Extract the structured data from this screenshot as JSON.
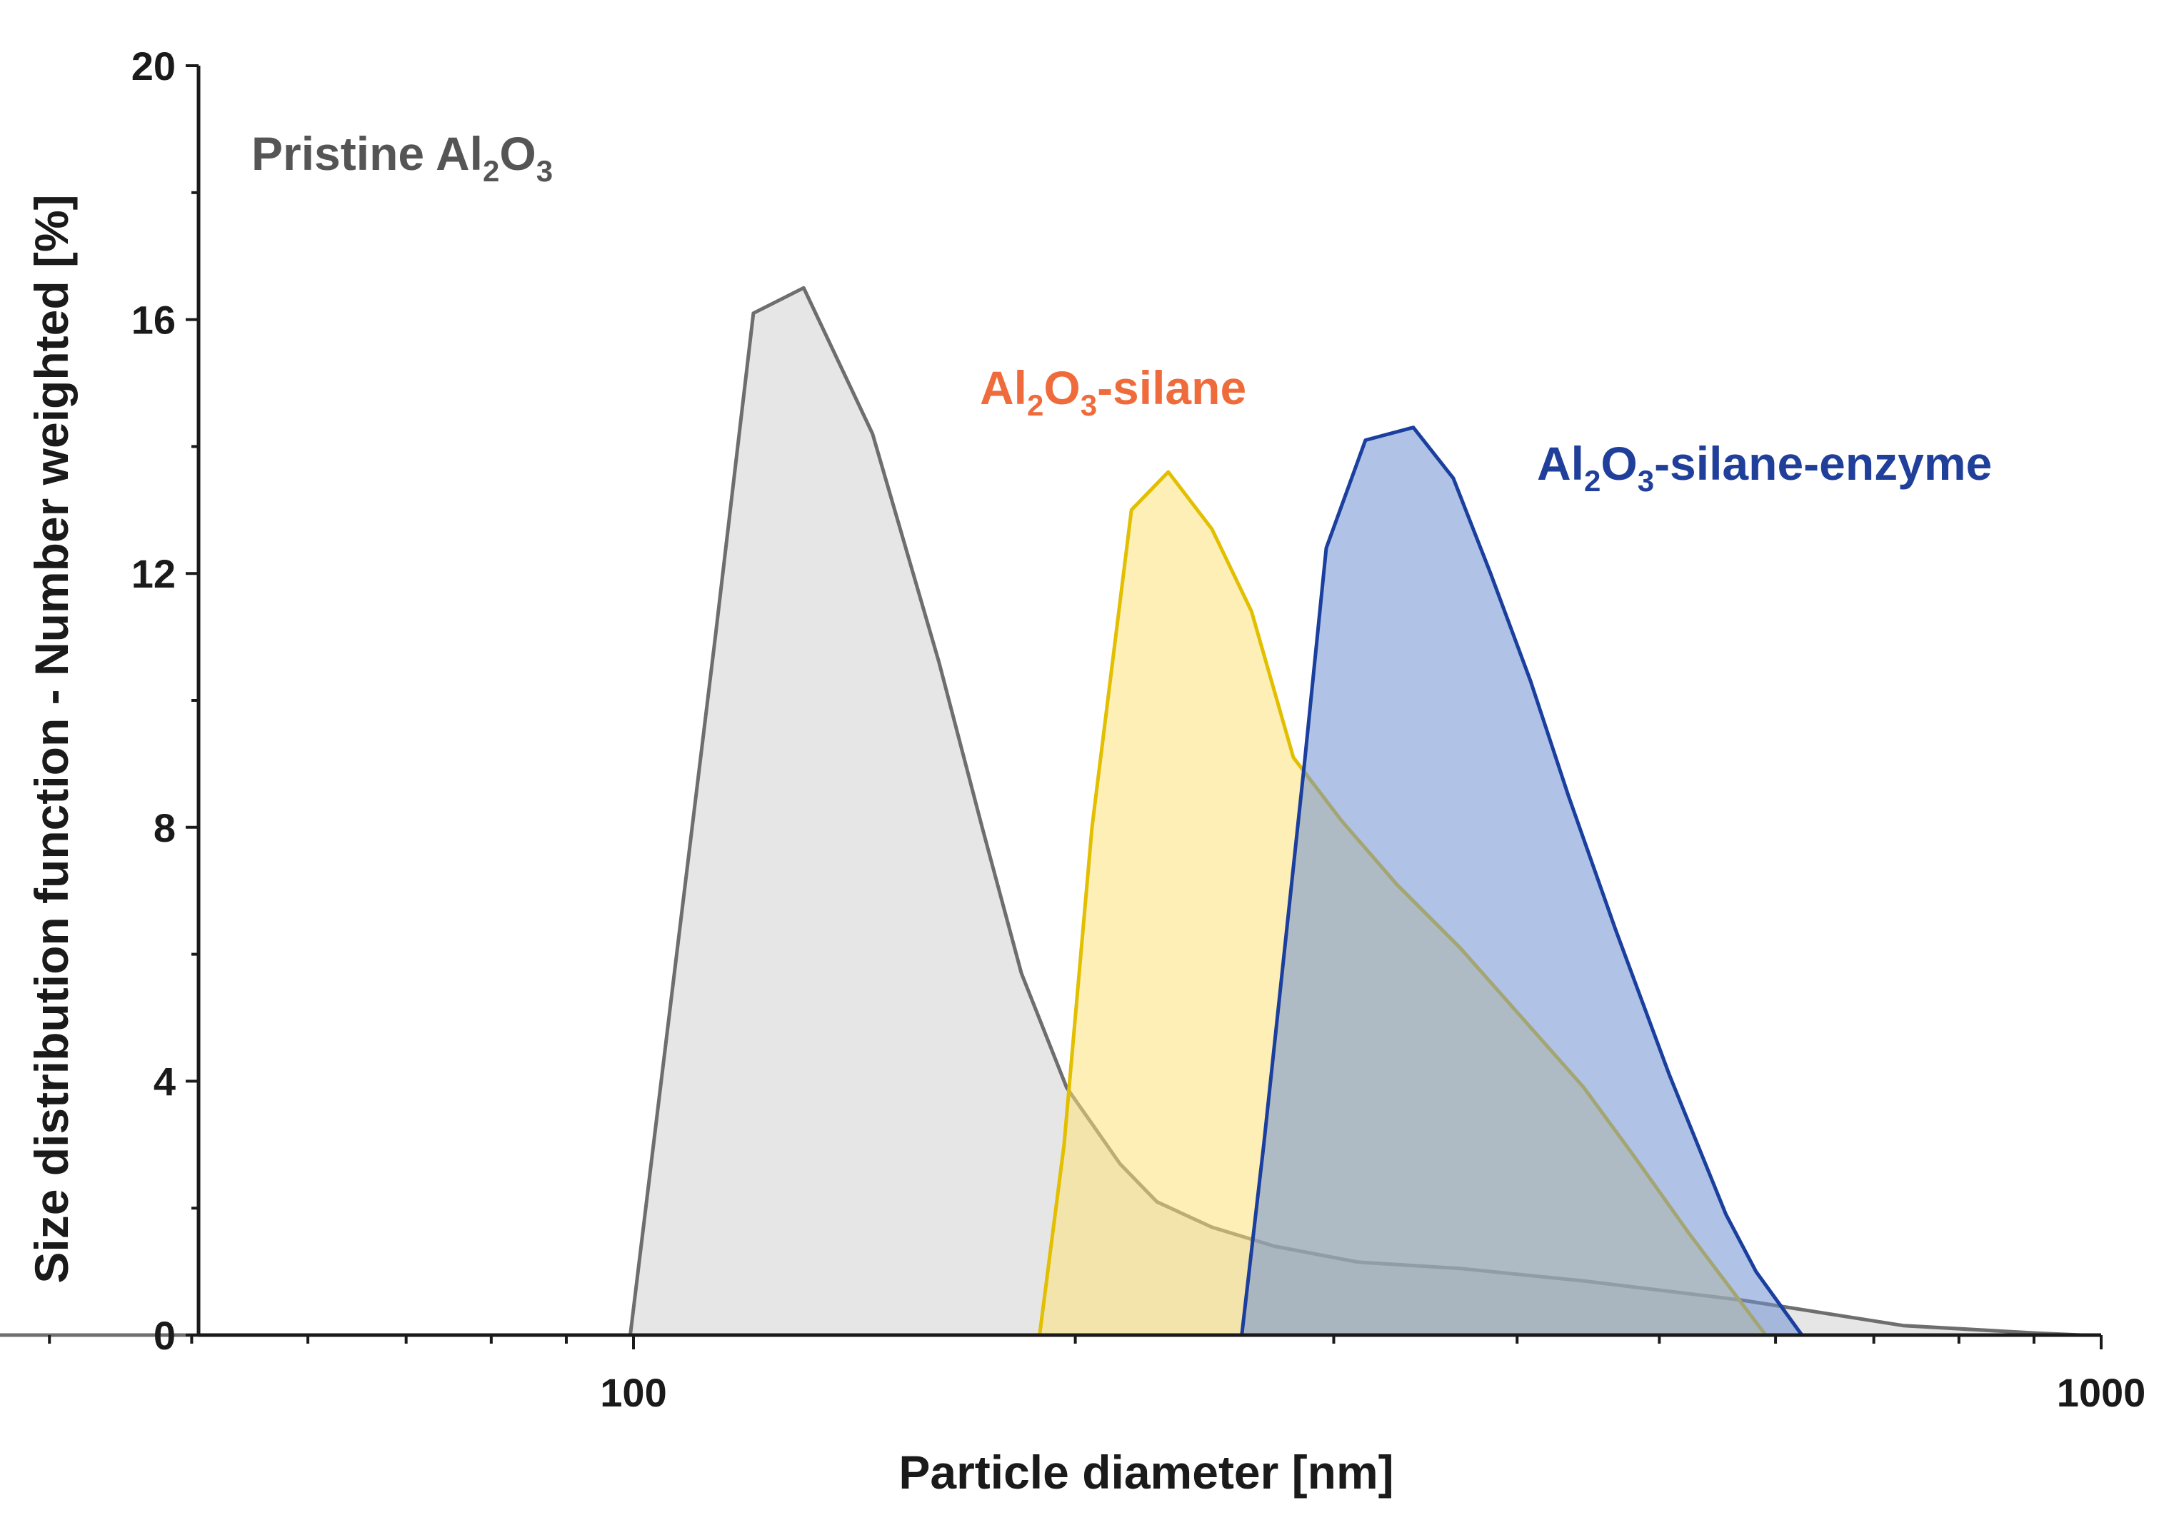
{
  "chart_data": {
    "type": "area",
    "xlabel": "Particle diameter [nm]",
    "ylabel": "Size distribution function - Number weighted [%]",
    "x_scale": "log",
    "xlim": [
      30,
      1000
    ],
    "ylim": [
      0,
      20
    ],
    "x_ticks": [
      {
        "value": 100,
        "label": "100"
      },
      {
        "value": 1000,
        "label": "1000"
      }
    ],
    "y_ticks": [
      {
        "value": 0,
        "label": "0"
      },
      {
        "value": 4,
        "label": "4"
      },
      {
        "value": 8,
        "label": "8"
      },
      {
        "value": 12,
        "label": "12"
      },
      {
        "value": 16,
        "label": "16"
      },
      {
        "value": 20,
        "label": "20"
      }
    ],
    "grid": false,
    "series": [
      {
        "label_parts": [
          "Pristine Al",
          "2",
          "O",
          "3",
          ""
        ],
        "line_color": "#6e6e6e",
        "fill_color": "#d6d6d6",
        "x": [
          30,
          99.5,
          113.7,
          120.7,
          130.6,
          145.5,
          161.5,
          172.8,
          183.8,
          197.3,
          214.5,
          227.3,
          247.8,
          273.3,
          311.7,
          365.8,
          445.1,
          569.4,
          733.2,
          904.3,
          969.9
        ],
        "y": [
          0,
          0,
          11,
          16.1,
          16.5,
          14.2,
          10.6,
          8,
          5.7,
          3.9,
          2.7,
          2.1,
          1.7,
          1.4,
          1.15,
          1.05,
          0.85,
          0.55,
          0.15,
          0.03,
          0
        ]
      },
      {
        "label_parts": [
          "Al",
          "2",
          "O",
          "3",
          "-silane"
        ],
        "line_color": "#e2bf00",
        "fill_color": "#fbe17a",
        "x": [
          189.1,
          196.5,
          205.3,
          218.4,
          231.4,
          247.8,
          263.7,
          281.6,
          303.8,
          331.2,
          365.8,
          403.1,
          444.1,
          481.2,
          523.9,
          590.8
        ],
        "y": [
          0,
          3,
          8,
          13,
          13.6,
          12.7,
          11.4,
          9.1,
          8.1,
          7.1,
          6.1,
          5,
          3.9,
          2.8,
          1.6,
          0
        ]
      },
      {
        "label_parts": [
          "Al",
          "2",
          "O",
          "3",
          "-silane-enzyme"
        ],
        "line_color": "#1a3f9e",
        "fill_color": "#6f8fcf",
        "x": [
          259.7,
          268.8,
          286.5,
          296.5,
          315.3,
          339.9,
          361.9,
          383.7,
          408.6,
          433.5,
          466.6,
          507.9,
          555.1,
          581.9,
          625.3
        ],
        "y": [
          0,
          3,
          9,
          12.4,
          14.1,
          14.3,
          13.5,
          12,
          10.3,
          8.5,
          6.4,
          4.1,
          1.9,
          1,
          0
        ]
      }
    ]
  }
}
